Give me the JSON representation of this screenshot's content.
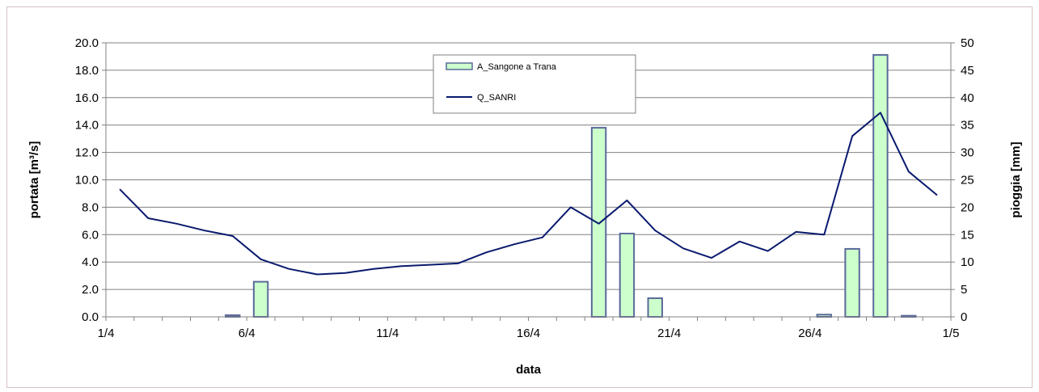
{
  "chart_data": {
    "type": "bar+line",
    "xlabel": "data",
    "ylabel_left": "portata [m³/s]",
    "ylabel_right": "pioggia [mm]",
    "x_tick_labels": [
      "1/4",
      "6/4",
      "11/4",
      "16/4",
      "21/4",
      "26/4",
      "1/5"
    ],
    "ylim_left": [
      0,
      20
    ],
    "ylim_right": [
      0,
      50
    ],
    "y_left_tick_labels": [
      "0.0",
      "2.0",
      "4.0",
      "6.0",
      "8.0",
      "10.0",
      "12.0",
      "14.0",
      "16.0",
      "18.0",
      "20.0"
    ],
    "y_right_tick_labels": [
      "0",
      "5",
      "10",
      "15",
      "20",
      "25",
      "30",
      "35",
      "40",
      "45",
      "50"
    ],
    "grid": true,
    "legend_position": "top-center",
    "series": [
      {
        "name": "A_Sangone a Trana",
        "kind": "bar",
        "axis": "right",
        "color": "#ccffcc",
        "edge_color": "#5a6a9a",
        "days": [
          5,
          6,
          18,
          19,
          20,
          26,
          27,
          28,
          29
        ],
        "values": [
          0.3,
          6.4,
          34.5,
          15.2,
          3.4,
          0.4,
          12.4,
          47.8,
          0.2
        ]
      },
      {
        "name": "Q_SANRI",
        "kind": "line",
        "axis": "left",
        "color": "#0a1a6e",
        "days": [
          1,
          2,
          3,
          4,
          5,
          6,
          7,
          8,
          9,
          10,
          11,
          12,
          13,
          14,
          15,
          16,
          17,
          18,
          19,
          20,
          21,
          22,
          23,
          24,
          25,
          26,
          27,
          28,
          29,
          30
        ],
        "values": [
          9.3,
          7.2,
          6.8,
          6.3,
          5.9,
          4.2,
          3.5,
          3.1,
          3.2,
          3.5,
          3.7,
          3.8,
          3.9,
          4.7,
          5.3,
          5.8,
          8.0,
          6.8,
          8.5,
          6.3,
          5.0,
          4.3,
          5.5,
          4.8,
          6.2,
          6.0,
          13.2,
          14.9,
          10.6,
          8.9
        ]
      }
    ]
  }
}
